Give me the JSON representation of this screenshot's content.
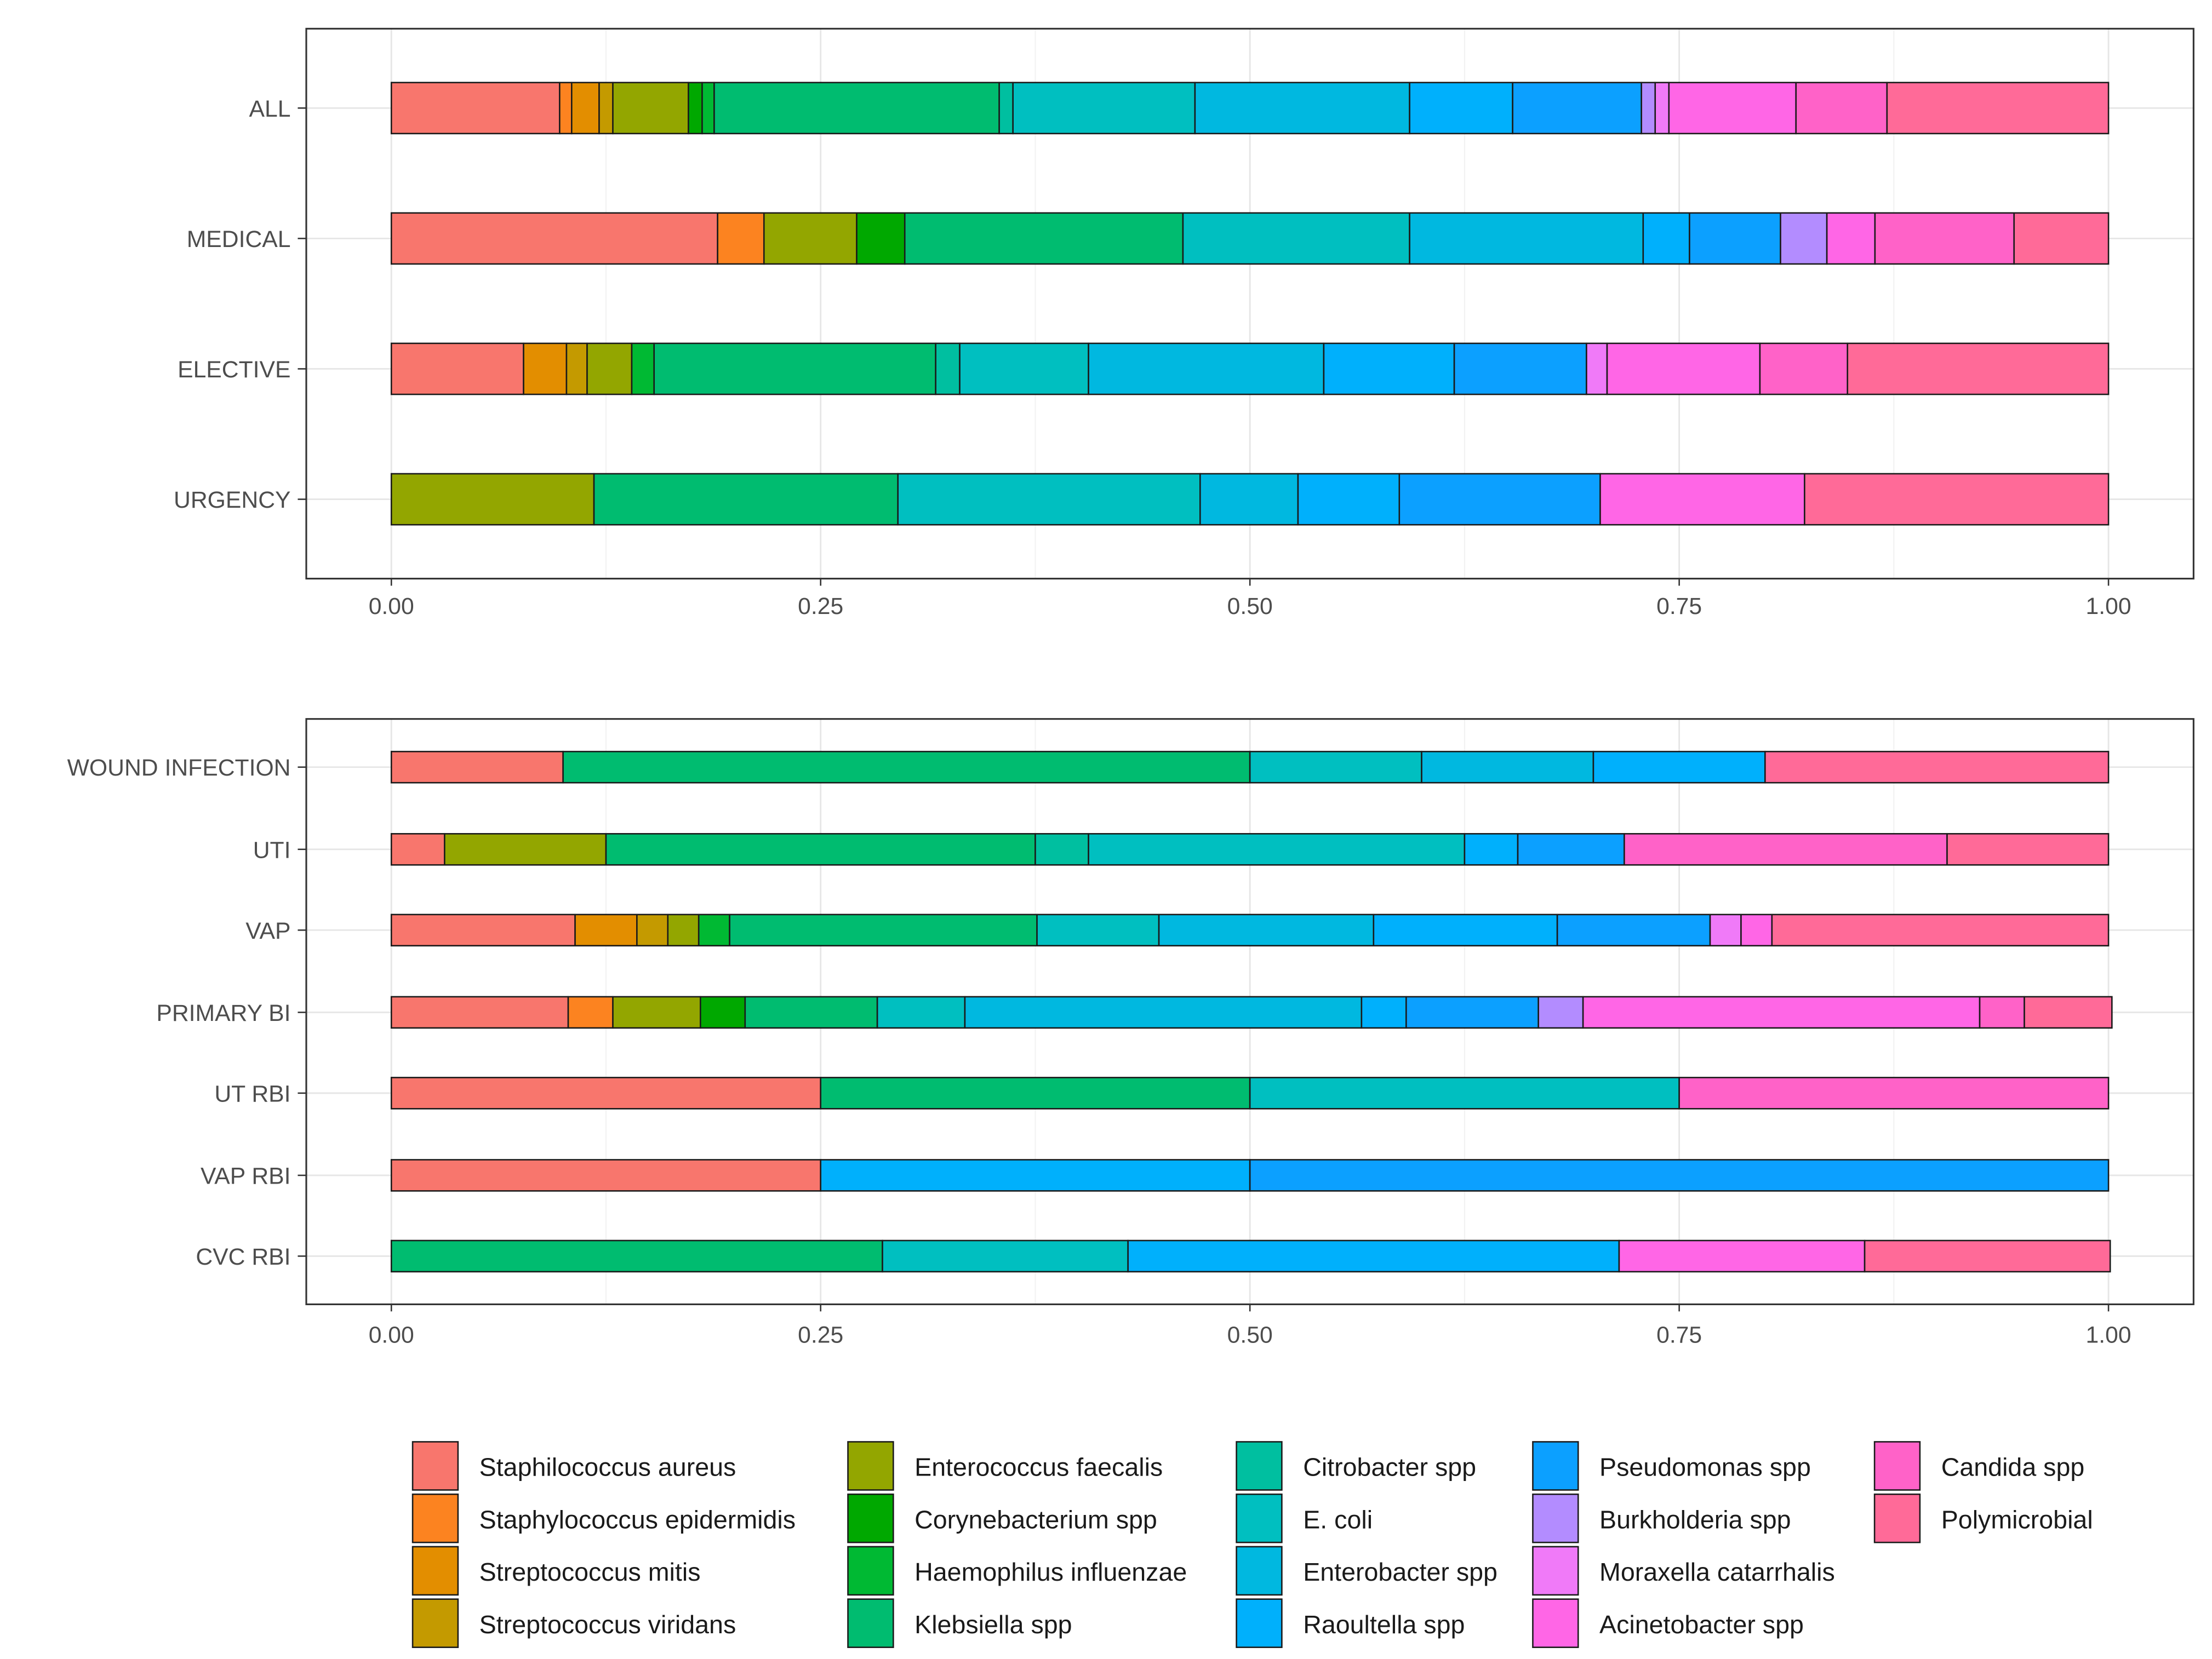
{
  "legend": {
    "items": [
      {
        "label": "Staphilococcus aureus",
        "color": "#F8766D"
      },
      {
        "label": "Staphylococcus epidermidis",
        "color": "#FC8320"
      },
      {
        "label": "Streptococcus mitis",
        "color": "#E38E00"
      },
      {
        "label": "Streptococcus viridans",
        "color": "#C49A00"
      },
      {
        "label": "Enterococcus faecalis",
        "color": "#93A600"
      },
      {
        "label": "Corynebacterium spp",
        "color": "#00A800"
      },
      {
        "label": "Haemophilus influenzae",
        "color": "#00B933"
      },
      {
        "label": "Klebsiella spp",
        "color": "#00BC70"
      },
      {
        "label": "Citrobacter spp",
        "color": "#00BFA0"
      },
      {
        "label": "E. coli",
        "color": "#00BFC0"
      },
      {
        "label": "Enterobacter spp",
        "color": "#00B8E0"
      },
      {
        "label": "Raoultella spp",
        "color": "#00B0FC"
      },
      {
        "label": "Pseudomonas spp",
        "color": "#0CA0FF"
      },
      {
        "label": "Burkholderia spp",
        "color": "#B38CFF"
      },
      {
        "label": "Moraxella catarrhalis",
        "color": "#F07AF8"
      },
      {
        "label": "Acinetobacter spp",
        "color": "#FF66E6"
      },
      {
        "label": "Candida spp",
        "color": "#FF62C8"
      },
      {
        "label": "Polymicrobial",
        "color": "#FF6A98"
      }
    ]
  },
  "chart_data": [
    {
      "type": "bar",
      "orientation": "horizontal",
      "stacked": "proportion",
      "xlabel": "",
      "ylabel": "",
      "xlim": [
        0,
        1
      ],
      "x_ticks": [
        "0.00",
        "0.25",
        "0.50",
        "0.75",
        "1.00"
      ],
      "grid": true,
      "categories": [
        "ALL",
        "MEDICAL",
        "ELECTIVE",
        "URGENCY"
      ],
      "rows": [
        {
          "category": "ALL",
          "segments": [
            [
              "Staphilococcus aureus",
              0.098
            ],
            [
              "Staphylococcus epidermidis",
              0.007
            ],
            [
              "Streptococcus mitis",
              0.016
            ],
            [
              "Streptococcus viridans",
              0.008
            ],
            [
              "Enterococcus faecalis",
              0.044
            ],
            [
              "Corynebacterium spp",
              0.008
            ],
            [
              "Haemophilus influenzae",
              0.007
            ],
            [
              "Klebsiella spp",
              0.166
            ],
            [
              "Citrobacter spp",
              0.008
            ],
            [
              "E. coli",
              0.106
            ],
            [
              "Enterobacter spp",
              0.125
            ],
            [
              "Raoultella spp",
              0.06
            ],
            [
              "Pseudomonas spp",
              0.075
            ],
            [
              "Burkholderia spp",
              0.008
            ],
            [
              "Moraxella catarrhalis",
              0.008
            ],
            [
              "Acinetobacter spp",
              0.074
            ],
            [
              "Candida spp",
              0.053
            ],
            [
              "Polymicrobial",
              0.129
            ]
          ]
        },
        {
          "category": "MEDICAL",
          "segments": [
            [
              "Staphilococcus aureus",
              0.19
            ],
            [
              "Staphylococcus epidermidis",
              0.027
            ],
            [
              "Enterococcus faecalis",
              0.054
            ],
            [
              "Corynebacterium spp",
              0.028
            ],
            [
              "Klebsiella spp",
              0.162
            ],
            [
              "E. coli",
              0.132
            ],
            [
              "Enterobacter spp",
              0.136
            ],
            [
              "Raoultella spp",
              0.027
            ],
            [
              "Pseudomonas spp",
              0.053
            ],
            [
              "Burkholderia spp",
              0.027
            ],
            [
              "Acinetobacter spp",
              0.028
            ],
            [
              "Candida spp",
              0.081
            ],
            [
              "Polymicrobial",
              0.055
            ]
          ]
        },
        {
          "category": "ELECTIVE",
          "segments": [
            [
              "Staphilococcus aureus",
              0.077
            ],
            [
              "Streptococcus mitis",
              0.025
            ],
            [
              "Streptococcus viridans",
              0.012
            ],
            [
              "Enterococcus faecalis",
              0.026
            ],
            [
              "Haemophilus influenzae",
              0.013
            ],
            [
              "Klebsiella spp",
              0.164
            ],
            [
              "Citrobacter spp",
              0.014
            ],
            [
              "E. coli",
              0.075
            ],
            [
              "Enterobacter spp",
              0.137
            ],
            [
              "Raoultella spp",
              0.076
            ],
            [
              "Pseudomonas spp",
              0.077
            ],
            [
              "Moraxella catarrhalis",
              0.012
            ],
            [
              "Acinetobacter spp",
              0.089
            ],
            [
              "Candida spp",
              0.051
            ],
            [
              "Polymicrobial",
              0.152
            ]
          ]
        },
        {
          "category": "URGENCY",
          "segments": [
            [
              "Enterococcus faecalis",
              0.118
            ],
            [
              "Klebsiella spp",
              0.177
            ],
            [
              "E. coli",
              0.176
            ],
            [
              "Enterobacter spp",
              0.057
            ],
            [
              "Raoultella spp",
              0.059
            ],
            [
              "Pseudomonas spp",
              0.117
            ],
            [
              "Acinetobacter spp",
              0.119
            ],
            [
              "Polymicrobial",
              0.177
            ]
          ]
        }
      ]
    },
    {
      "type": "bar",
      "orientation": "horizontal",
      "stacked": "proportion",
      "xlabel": "",
      "ylabel": "",
      "xlim": [
        0,
        1
      ],
      "x_ticks": [
        "0.00",
        "0.25",
        "0.50",
        "0.75",
        "1.00"
      ],
      "grid": true,
      "categories": [
        "WOUND INFECTION",
        "UTI",
        "VAP",
        "PRIMARY BI",
        "UT RBI",
        "VAP RBI",
        "CVC RBI"
      ],
      "rows": [
        {
          "category": "WOUND INFECTION",
          "segments": [
            [
              "Staphilococcus aureus",
              0.1
            ],
            [
              "Klebsiella spp",
              0.4
            ],
            [
              "E. coli",
              0.1
            ],
            [
              "Enterobacter spp",
              0.1
            ],
            [
              "Raoultella spp",
              0.1
            ],
            [
              "Polymicrobial",
              0.2
            ]
          ]
        },
        {
          "category": "UTI",
          "segments": [
            [
              "Staphilococcus aureus",
              0.031
            ],
            [
              "Enterococcus faecalis",
              0.094
            ],
            [
              "Klebsiella spp",
              0.25
            ],
            [
              "Citrobacter spp",
              0.031
            ],
            [
              "E. coli",
              0.219
            ],
            [
              "Raoultella spp",
              0.031
            ],
            [
              "Pseudomonas spp",
              0.062
            ],
            [
              "Candida spp",
              0.188
            ],
            [
              "Polymicrobial",
              0.094
            ]
          ]
        },
        {
          "category": "VAP",
          "segments": [
            [
              "Staphilococcus aureus",
              0.107
            ],
            [
              "Streptococcus mitis",
              0.036
            ],
            [
              "Streptococcus viridans",
              0.018
            ],
            [
              "Enterococcus faecalis",
              0.018
            ],
            [
              "Haemophilus influenzae",
              0.018
            ],
            [
              "Klebsiella spp",
              0.179
            ],
            [
              "E. coli",
              0.071
            ],
            [
              "Enterobacter spp",
              0.125
            ],
            [
              "Raoultella spp",
              0.107
            ],
            [
              "Pseudomonas spp",
              0.089
            ],
            [
              "Moraxella catarrhalis",
              0.018
            ],
            [
              "Acinetobacter spp",
              0.018
            ],
            [
              "Polymicrobial",
              0.196
            ]
          ]
        },
        {
          "category": "PRIMARY BI",
          "segments": [
            [
              "Staphilococcus aureus",
              0.103
            ],
            [
              "Staphylococcus epidermidis",
              0.026
            ],
            [
              "Enterococcus faecalis",
              0.051
            ],
            [
              "Corynebacterium spp",
              0.026
            ],
            [
              "Klebsiella spp",
              0.077
            ],
            [
              "E. coli",
              0.051
            ],
            [
              "Enterobacter spp",
              0.231
            ],
            [
              "Raoultella spp",
              0.026
            ],
            [
              "Pseudomonas spp",
              0.077
            ],
            [
              "Burkholderia spp",
              0.026
            ],
            [
              "Acinetobacter spp",
              0.231
            ],
            [
              "Candida spp",
              0.026
            ],
            [
              "Polymicrobial",
              0.051
            ]
          ]
        },
        {
          "category": "UT RBI",
          "segments": [
            [
              "Staphilococcus aureus",
              0.25
            ],
            [
              "Klebsiella spp",
              0.25
            ],
            [
              "E. coli",
              0.25
            ],
            [
              "Candida spp",
              0.25
            ]
          ]
        },
        {
          "category": "VAP RBI",
          "segments": [
            [
              "Staphilococcus aureus",
              0.25
            ],
            [
              "Raoultella spp",
              0.25
            ],
            [
              "Pseudomonas spp",
              0.5
            ]
          ]
        },
        {
          "category": "CVC RBI",
          "segments": [
            [
              "Klebsiella spp",
              0.286
            ],
            [
              "E. coli",
              0.143
            ],
            [
              "Raoultella spp",
              0.286
            ],
            [
              "Acinetobacter spp",
              0.143
            ],
            [
              "Polymicrobial",
              0.143
            ]
          ]
        }
      ]
    }
  ]
}
